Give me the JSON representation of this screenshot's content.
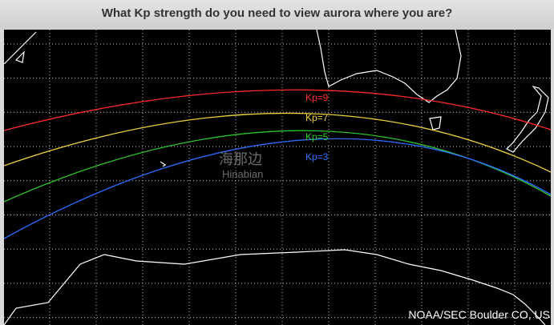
{
  "header": {
    "title": "What Kp strength do you need to view aurora where you are?"
  },
  "map": {
    "lines": [
      {
        "label": "Kp=9"
      },
      {
        "label": "Kp=7"
      },
      {
        "label": "Kp=5"
      },
      {
        "label": "Kp=3"
      }
    ],
    "watermark": {
      "chinese": "海那边",
      "latin": "Hinabian"
    },
    "credit": "NOAA/SEC Boulder CO, US"
  }
}
